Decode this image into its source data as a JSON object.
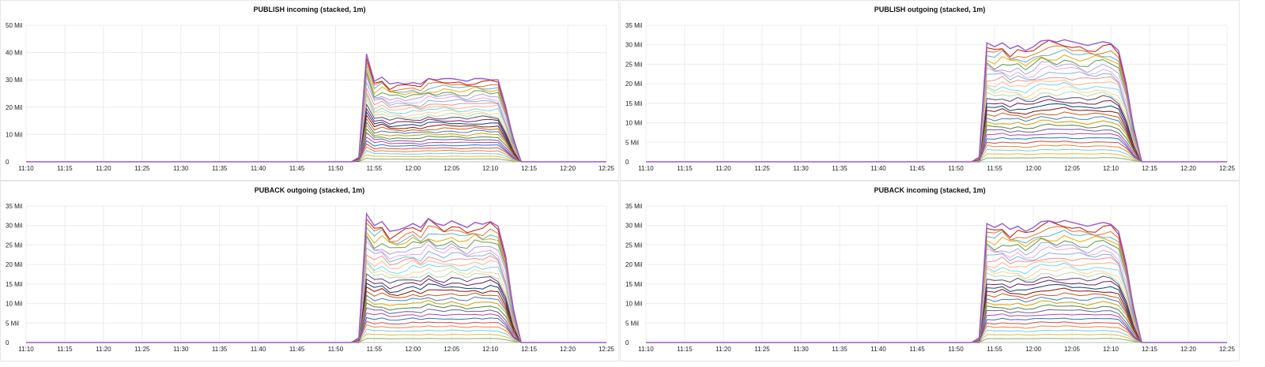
{
  "panels": [
    {
      "title": "PUBLISH incoming (stacked, 1m)",
      "chart_data": {
        "type": "area",
        "stacked": true,
        "title": "PUBLISH incoming (stacked, 1m)",
        "x_ticks": [
          "11:10",
          "11:15",
          "11:20",
          "11:25",
          "11:30",
          "11:35",
          "11:40",
          "11:45",
          "11:50",
          "11:55",
          "12:00",
          "12:05",
          "12:10",
          "12:15",
          "12:20",
          "12:25"
        ],
        "y_ticks": [
          "0",
          "10 Mil",
          "20 Mil",
          "30 Mil",
          "40 Mil",
          "50 Mil"
        ],
        "ylim": [
          0,
          50
        ],
        "y_unit": "Mil",
        "series_count": 30,
        "total_profile": {
          "x": [
            "11:10",
            "11:52",
            "11:53",
            "11:54",
            "11:55",
            "11:56",
            "11:57",
            "11:58",
            "11:59",
            "12:00",
            "12:01",
            "12:02",
            "12:03",
            "12:04",
            "12:05",
            "12:06",
            "12:07",
            "12:08",
            "12:09",
            "12:10",
            "12:11",
            "12:12",
            "12:13",
            "12:14",
            "12:15",
            "12:25"
          ],
          "y": [
            0,
            0,
            1.5,
            39.5,
            29.5,
            31,
            28.5,
            29,
            28.5,
            29,
            28.5,
            30.5,
            30,
            30.5,
            30.5,
            30,
            29.5,
            30.5,
            30.5,
            30,
            30,
            20,
            8,
            0,
            0,
            0
          ]
        },
        "grid": true
      }
    },
    {
      "title": "PUBLISH outgoing (stacked, 1m)",
      "chart_data": {
        "type": "area",
        "stacked": true,
        "title": "PUBLISH outgoing (stacked, 1m)",
        "x_ticks": [
          "11:10",
          "11:15",
          "11:20",
          "11:25",
          "11:30",
          "11:35",
          "11:40",
          "11:45",
          "11:50",
          "11:55",
          "12:00",
          "12:05",
          "12:10",
          "12:15",
          "12:20",
          "12:25"
        ],
        "y_ticks": [
          "0",
          "5 Mil",
          "10 Mil",
          "15 Mil",
          "20 Mil",
          "25 Mil",
          "30 Mil",
          "35 Mil"
        ],
        "ylim": [
          0,
          35
        ],
        "y_unit": "Mil",
        "series_count": 30,
        "total_profile": {
          "x": [
            "11:10",
            "11:52",
            "11:53",
            "11:54",
            "11:55",
            "11:56",
            "11:57",
            "11:58",
            "11:59",
            "12:00",
            "12:01",
            "12:02",
            "12:03",
            "12:04",
            "12:05",
            "12:06",
            "12:07",
            "12:08",
            "12:09",
            "12:10",
            "12:11",
            "12:12",
            "12:13",
            "12:14",
            "12:15",
            "12:25"
          ],
          "y": [
            0,
            0,
            1,
            30.5,
            29.5,
            30.5,
            29,
            29.8,
            28.5,
            29.5,
            31,
            31.2,
            30.7,
            31.3,
            30.8,
            30.3,
            29.8,
            30.3,
            30.8,
            30.3,
            28.5,
            20,
            8,
            0,
            0,
            0
          ]
        },
        "grid": true
      }
    },
    {
      "title": "PUBACK outgoing (stacked, 1m)",
      "chart_data": {
        "type": "area",
        "stacked": true,
        "title": "PUBACK outgoing (stacked, 1m)",
        "x_ticks": [
          "11:10",
          "11:15",
          "11:20",
          "11:25",
          "11:30",
          "11:35",
          "11:40",
          "11:45",
          "11:50",
          "11:55",
          "12:00",
          "12:05",
          "12:10",
          "12:15",
          "12:20",
          "12:25"
        ],
        "y_ticks": [
          "0",
          "5 Mil",
          "10 Mil",
          "15 Mil",
          "20 Mil",
          "25 Mil",
          "30 Mil",
          "35 Mil"
        ],
        "ylim": [
          0,
          35
        ],
        "y_unit": "Mil",
        "series_count": 30,
        "total_profile": {
          "x": [
            "11:10",
            "11:52",
            "11:53",
            "11:54",
            "11:55",
            "11:56",
            "11:57",
            "11:58",
            "11:59",
            "12:00",
            "12:01",
            "12:02",
            "12:03",
            "12:04",
            "12:05",
            "12:06",
            "12:07",
            "12:08",
            "12:09",
            "12:10",
            "12:11",
            "12:12",
            "12:13",
            "12:14",
            "12:15",
            "12:25"
          ],
          "y": [
            0,
            0,
            1,
            33,
            30,
            31,
            28.5,
            28.8,
            29.5,
            30.5,
            29.5,
            31.8,
            30.5,
            30,
            31.2,
            30.3,
            29.5,
            30.8,
            30.3,
            31,
            29.8,
            22,
            8,
            0,
            0,
            0
          ]
        },
        "grid": true
      }
    },
    {
      "title": "PUBACK incoming (stacked, 1m)",
      "chart_data": {
        "type": "area",
        "stacked": true,
        "title": "PUBACK incoming (stacked, 1m)",
        "x_ticks": [
          "11:10",
          "11:15",
          "11:20",
          "11:25",
          "11:30",
          "11:35",
          "11:40",
          "11:45",
          "11:50",
          "11:55",
          "12:00",
          "12:05",
          "12:10",
          "12:15",
          "12:20",
          "12:25"
        ],
        "y_ticks": [
          "0",
          "5 Mil",
          "10 Mil",
          "15 Mil",
          "20 Mil",
          "25 Mil",
          "30 Mil",
          "35 Mil"
        ],
        "ylim": [
          0,
          35
        ],
        "y_unit": "Mil",
        "series_count": 30,
        "total_profile": {
          "x": [
            "11:10",
            "11:52",
            "11:53",
            "11:54",
            "11:55",
            "11:56",
            "11:57",
            "11:58",
            "11:59",
            "12:00",
            "12:01",
            "12:02",
            "12:03",
            "12:04",
            "12:05",
            "12:06",
            "12:07",
            "12:08",
            "12:09",
            "12:10",
            "12:11",
            "12:12",
            "12:13",
            "12:14",
            "12:15",
            "12:25"
          ],
          "y": [
            0,
            0,
            1,
            30.5,
            29.5,
            30.5,
            29,
            29.8,
            28.5,
            29.5,
            31,
            31.2,
            30.7,
            31.3,
            30.8,
            30.3,
            29.8,
            30.3,
            30.8,
            30.3,
            28.5,
            20,
            8,
            0,
            0,
            0
          ]
        },
        "grid": true
      }
    }
  ],
  "series_colors": [
    "#7eb26d",
    "#eab839",
    "#6ed0e0",
    "#ef843c",
    "#e24d42",
    "#1f78c1",
    "#ba43a9",
    "#705da0",
    "#508642",
    "#cca300",
    "#447ebc",
    "#c15c17",
    "#890f02",
    "#0a437c",
    "#6d1f62",
    "#584477",
    "#b7dbab",
    "#f4d598",
    "#70dbed",
    "#f9ba8f",
    "#f29191",
    "#82b5d8",
    "#e5a8e2",
    "#aea2e0",
    "#629e51",
    "#e5ac0e",
    "#64b0c8",
    "#e0752d",
    "#bf1b00",
    "#0a50a1"
  ]
}
